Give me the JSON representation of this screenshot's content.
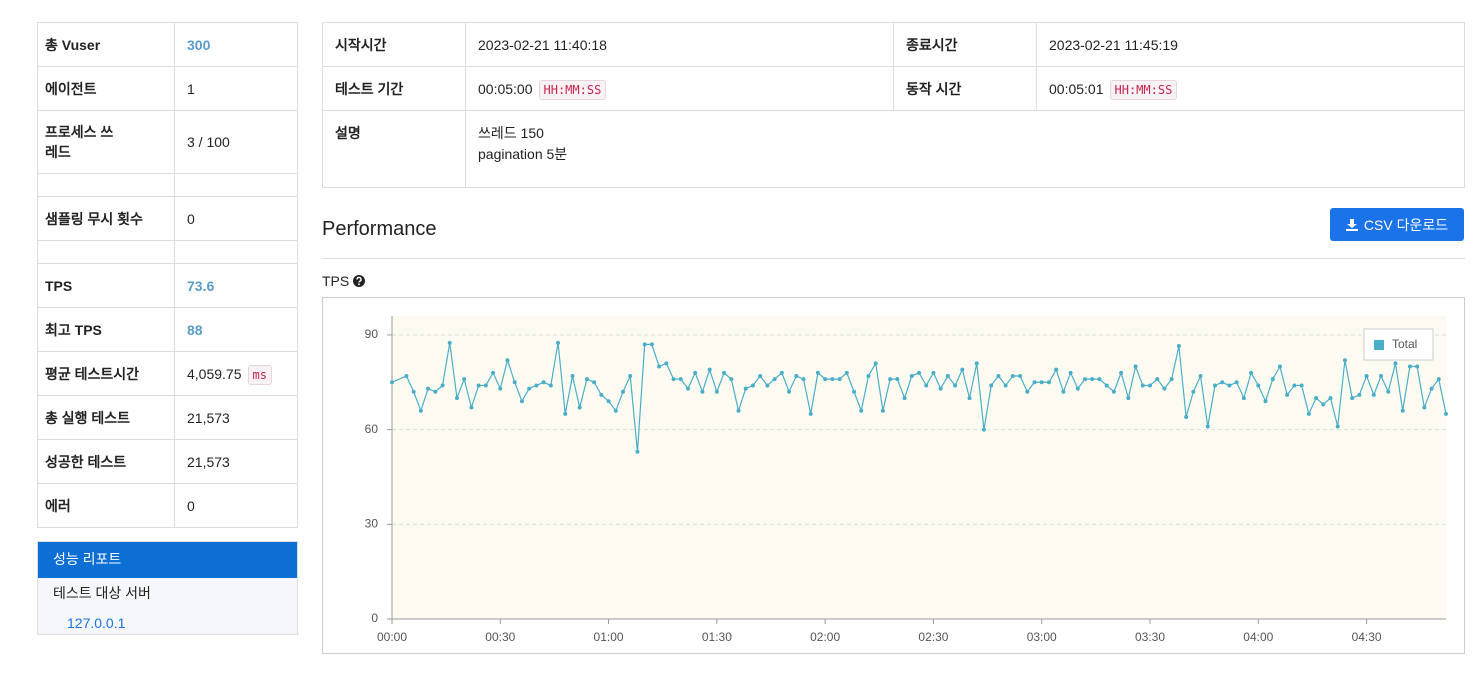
{
  "summary": {
    "rows": [
      {
        "label": "총 Vuser",
        "value": "300"
      },
      {
        "label": "에이전트",
        "value": "1"
      },
      {
        "label": "프로세스 쓰레드",
        "value": "3 / 100"
      },
      {
        "label": "샘플링 무시 횟수",
        "value": "0"
      },
      {
        "label": "TPS",
        "value": "73.6"
      },
      {
        "label": "최고 TPS",
        "value": "88"
      },
      {
        "label": "평균 테스트시간",
        "value": "4,059.75",
        "unit": "ms"
      },
      {
        "label": "총 실행 테스트",
        "value": "21,573"
      },
      {
        "label": "성공한 테스트",
        "value": "21,573"
      },
      {
        "label": "에러",
        "value": "0"
      }
    ]
  },
  "nav": {
    "title": "성능 리포트",
    "section": "테스트 대상 서버",
    "link": "127.0.0.1"
  },
  "info": {
    "start_label": "시작시간",
    "start": "2023-02-21 11:40:18",
    "end_label": "종료시간",
    "end": "2023-02-21 11:45:19",
    "duration_label": "테스트 기간",
    "duration": "00:05:00",
    "duration_unit": "HH:MM:SS",
    "run_label": "동작 시간",
    "run": "00:05:01",
    "run_unit": "HH:MM:SS",
    "desc_label": "설명",
    "desc": [
      "쓰레드 150",
      "pagination 5분"
    ]
  },
  "section": {
    "title": "Performance",
    "button": "CSV 다운로드"
  },
  "chart_data": {
    "type": "line",
    "title": "TPS",
    "x": [
      0,
      4,
      6,
      8,
      10,
      12,
      14,
      16,
      18,
      20,
      22,
      24,
      26,
      28,
      30,
      32,
      34,
      36,
      38,
      40,
      42,
      44,
      46,
      48,
      50,
      52,
      54,
      56,
      58,
      60,
      62,
      64,
      66,
      68,
      70,
      72,
      74,
      76,
      78,
      80,
      82,
      84,
      86,
      88,
      90,
      92,
      94,
      96,
      98,
      100,
      102,
      104,
      106,
      108,
      110,
      112,
      114,
      116,
      118,
      120,
      122,
      124,
      126,
      128,
      130,
      132,
      134,
      136,
      138,
      140,
      142,
      144,
      146,
      148,
      150,
      152,
      154,
      156,
      158,
      160,
      162,
      164,
      166,
      168,
      170,
      172,
      174,
      176,
      178,
      180,
      182,
      184,
      186,
      188,
      190,
      192,
      194,
      196,
      198,
      200,
      202,
      204,
      206,
      208,
      210,
      212,
      214,
      216,
      218,
      220,
      222,
      224,
      226,
      228,
      230,
      232,
      234,
      236,
      238,
      240,
      242,
      244,
      246,
      248,
      250,
      252,
      254,
      256,
      258,
      260,
      262,
      264,
      266,
      268,
      270,
      272,
      274,
      276,
      278,
      280,
      282,
      284,
      286,
      288,
      290,
      292
    ],
    "series": [
      {
        "name": "Total",
        "color": "#4aaec8",
        "values": [
          75,
          77,
          72,
          66,
          73,
          72,
          74,
          87.5,
          70,
          76,
          67,
          74,
          74,
          78,
          73,
          82,
          75,
          69,
          73,
          74,
          75,
          74,
          87.5,
          65,
          77,
          67,
          76,
          75,
          71,
          69,
          66,
          72,
          77,
          53,
          87,
          87,
          80,
          81,
          76,
          76,
          73,
          78,
          72,
          79,
          72,
          78,
          76,
          66,
          73,
          74,
          77,
          74,
          76,
          78,
          72,
          77,
          76,
          65,
          78,
          76,
          76,
          76,
          78,
          72,
          66,
          77,
          81,
          66,
          76,
          76,
          70,
          77,
          78,
          74,
          78,
          73,
          77,
          74,
          79,
          70,
          81,
          60,
          74,
          77,
          74,
          77,
          77,
          72,
          75,
          75,
          75,
          79,
          72,
          78,
          73,
          76,
          76,
          76,
          74,
          72,
          78,
          70,
          80,
          74,
          74,
          76,
          73,
          76,
          86.5,
          64,
          72,
          77,
          61,
          74,
          75,
          74,
          75,
          70,
          78,
          74,
          69,
          76,
          80,
          71,
          74,
          74,
          65,
          70,
          68,
          70,
          61,
          82,
          70,
          71,
          77,
          71,
          77,
          72,
          81,
          66,
          80,
          80,
          67,
          73,
          76,
          65
        ]
      }
    ],
    "xlim": [
      0,
      292
    ],
    "xticks": [
      {
        "value": 0,
        "label": "00:00"
      },
      {
        "value": 30,
        "label": "00:30"
      },
      {
        "value": 60,
        "label": "01:00"
      },
      {
        "value": 90,
        "label": "01:30"
      },
      {
        "value": 120,
        "label": "02:00"
      },
      {
        "value": 150,
        "label": "02:30"
      },
      {
        "value": 180,
        "label": "03:00"
      },
      {
        "value": 210,
        "label": "03:30"
      },
      {
        "value": 240,
        "label": "04:00"
      },
      {
        "value": 270,
        "label": "04:30"
      }
    ],
    "ylim": [
      0,
      96
    ],
    "yticks": [
      0,
      30,
      60,
      90
    ],
    "grid": true,
    "legend": "top-right"
  }
}
